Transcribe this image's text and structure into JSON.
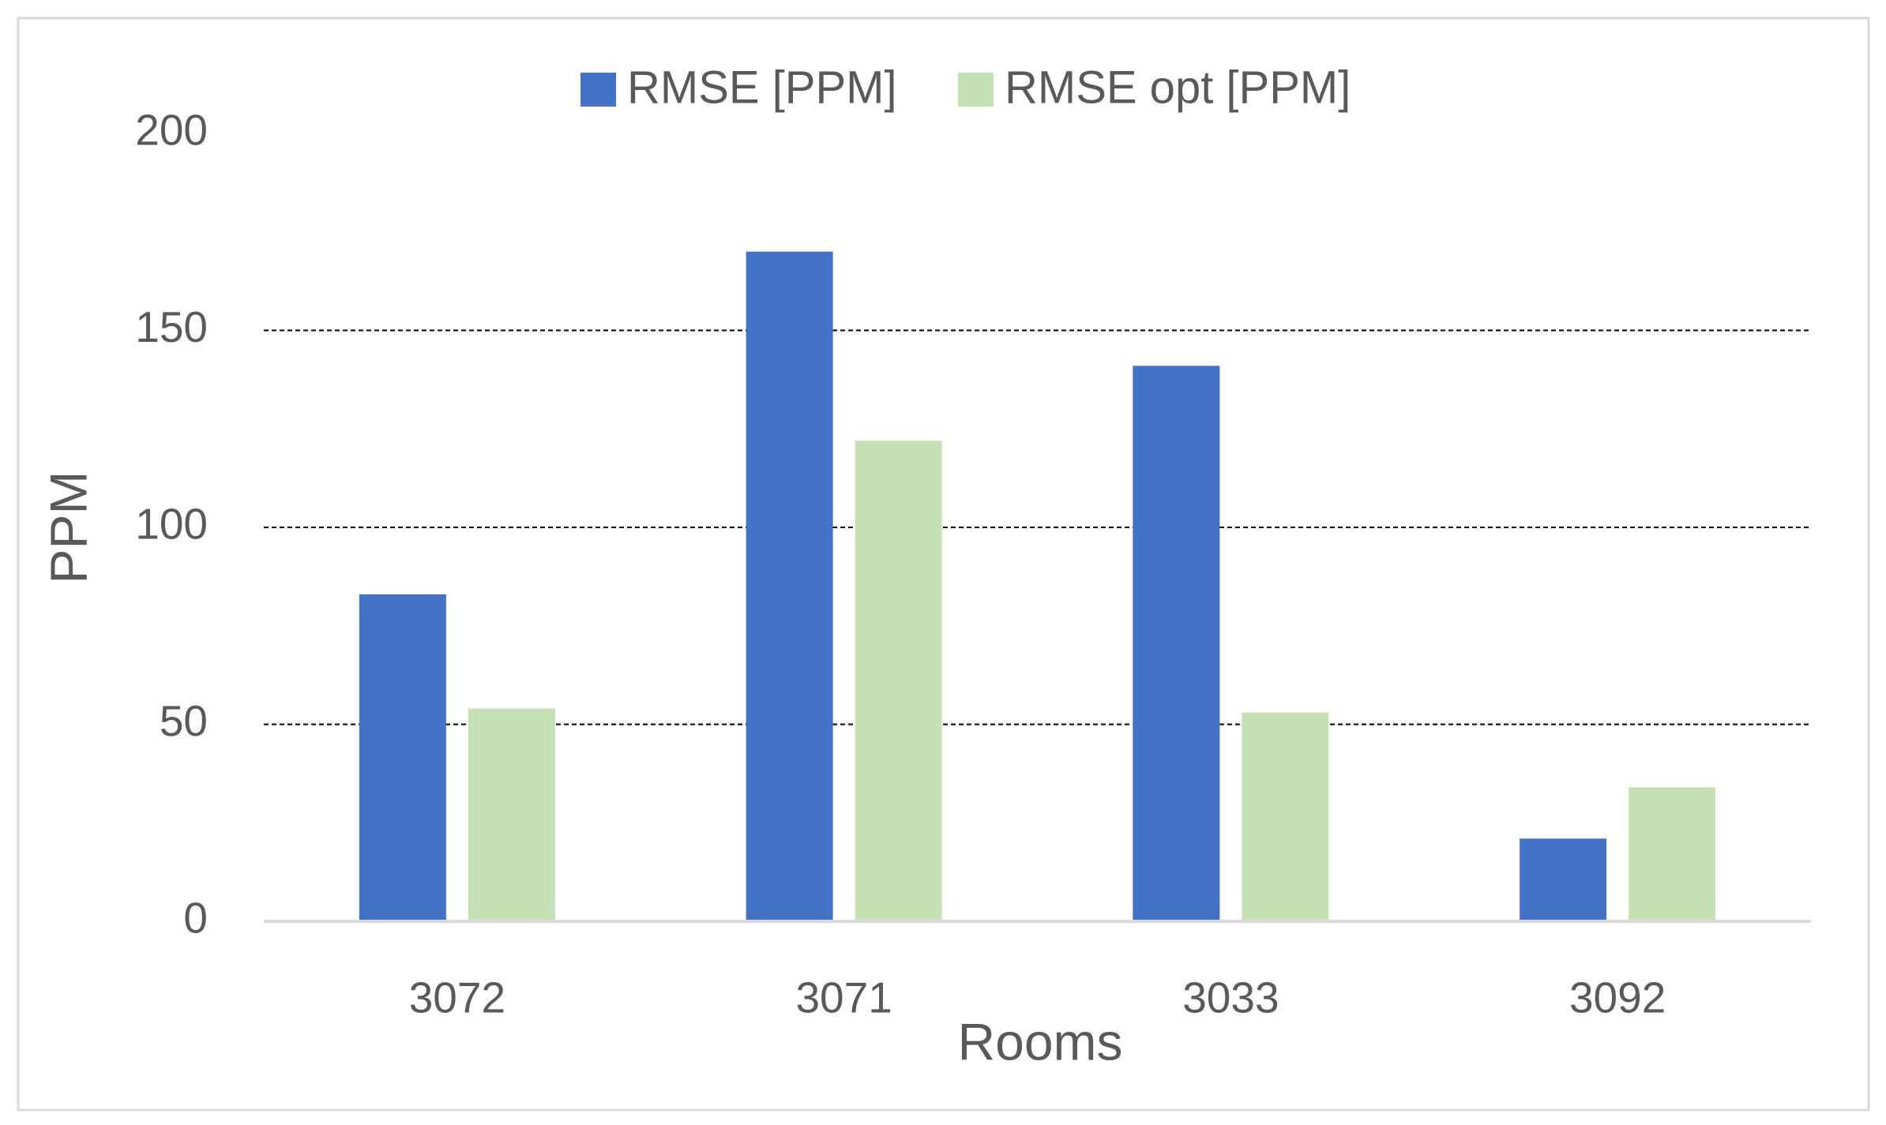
{
  "chart_data": {
    "type": "bar",
    "x_label": "Rooms",
    "y_label": "PPM",
    "categories": [
      "3072",
      "3071",
      "3033",
      "3092"
    ],
    "series": [
      {
        "name": "RMSE [PPM]",
        "color": "#4472c4",
        "values": [
          83,
          170,
          141,
          21
        ]
      },
      {
        "name": "RMSE opt [PPM]",
        "color": "#c5e0b4",
        "values": [
          54,
          122,
          53,
          34
        ]
      }
    ],
    "ylim": [
      0,
      200
    ],
    "yticks": [
      0,
      50,
      100,
      150,
      200
    ],
    "grid": true,
    "legend": "top"
  }
}
